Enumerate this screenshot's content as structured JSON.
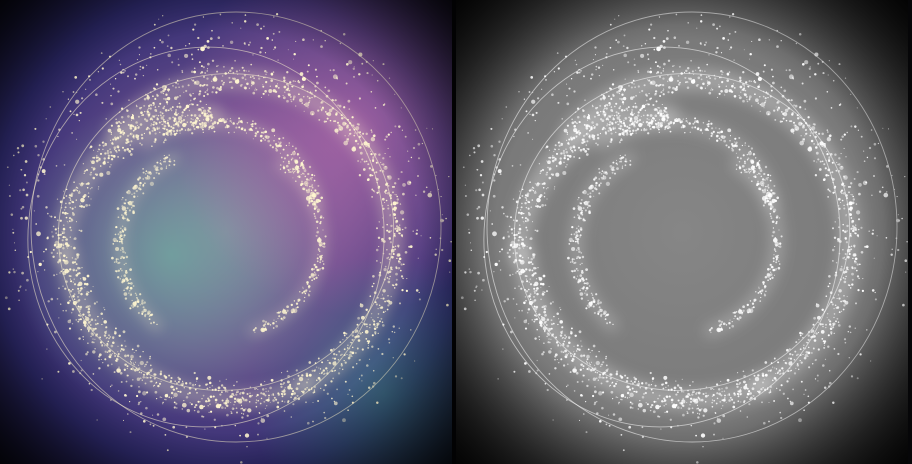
{
  "image": {
    "panels": [
      {
        "name": "color-render",
        "palette": "violet-teal-pink",
        "spark_color": "#fff6d0"
      },
      {
        "name": "grayscale-render",
        "palette": "monochrome",
        "spark_color": "#ffffff"
      }
    ],
    "colors": {
      "background": "#060608",
      "nebula_violet": "#7a4f9a",
      "nebula_pink": "#a0609a",
      "nebula_teal": "#4f8f8f",
      "nebula_blue": "#2a2a78",
      "gray_field": "#808080",
      "spark_warm": "#fff6d0",
      "spark_white": "#ffffff"
    }
  }
}
